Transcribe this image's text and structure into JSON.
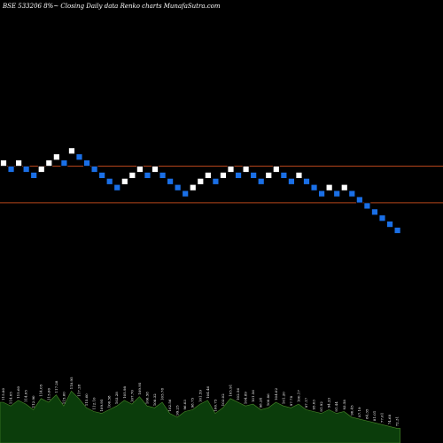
{
  "header": {
    "title": "BSE 533206  8%~   Closing Daily data  Renko  charts MunafaSutra.com"
  },
  "colors": {
    "background": "#000000",
    "up_brick": "#ffffff",
    "down_brick": "#1a6fe6",
    "brick_border": "#000000",
    "reference_line": "#b5451b",
    "volume_fill": "#0b3d0b",
    "volume_edge": "#4a8a2a"
  },
  "chart_data": {
    "type": "renko",
    "reference_lines": [
      0.0,
      -6.0
    ],
    "brick_levels": [
      1,
      0,
      1,
      0,
      -1,
      0,
      1,
      2,
      1,
      3,
      2,
      1,
      0,
      -1,
      -2,
      -3,
      -2,
      -1,
      0,
      -1,
      0,
      -1,
      -2,
      -3,
      -4,
      -3,
      -2,
      -1,
      -2,
      -1,
      0,
      -1,
      0,
      -1,
      -2,
      -1,
      0,
      -1,
      -2,
      -1,
      -2,
      -3,
      -4,
      -3,
      -4,
      -3,
      -4,
      -5,
      -6,
      -7,
      -8,
      -9,
      -10
    ],
    "brick_directions": [
      "up",
      "down",
      "up",
      "down",
      "down",
      "up",
      "up",
      "up",
      "down",
      "up",
      "down",
      "down",
      "down",
      "down",
      "down",
      "down",
      "up",
      "up",
      "up",
      "down",
      "up",
      "down",
      "down",
      "down",
      "down",
      "up",
      "up",
      "up",
      "down",
      "up",
      "up",
      "down",
      "up",
      "down",
      "down",
      "up",
      "up",
      "down",
      "down",
      "up",
      "down",
      "down",
      "down",
      "up",
      "down",
      "up",
      "down",
      "down",
      "down",
      "down",
      "down",
      "down",
      "down"
    ],
    "brick_labels": [
      "115.80",
      "114.05",
      "115.60",
      "114.05",
      "112.90",
      "114.05",
      "115.60",
      "117.28",
      "115.60",
      "118.95",
      "117.28",
      "115.60",
      "112.10",
      "109.95",
      "106.58",
      "103.28",
      "105.98",
      "107.70",
      "109.95",
      "106.58",
      "108.32",
      "105.78",
      "102.56",
      "99.25",
      "96.03",
      "98.75",
      "101.59",
      "104.46",
      "100.75",
      "103.02",
      "105.91",
      "102.56",
      "104.89",
      "101.56",
      "98.24",
      "100.86",
      "104.02",
      "101.20",
      "97.78",
      "100.17",
      "97.17",
      "95.03",
      "91.92",
      "94.23",
      "91.44",
      "93.58",
      "90.45",
      "87.19",
      "84.35",
      "81.01",
      "77.61",
      "74.68",
      "72.31"
    ],
    "volume": [
      1.0,
      0.9,
      1.05,
      0.95,
      0.8,
      1.1,
      1.0,
      1.2,
      0.9,
      1.3,
      1.1,
      0.85,
      0.75,
      0.7,
      0.8,
      0.9,
      1.05,
      0.95,
      1.15,
      0.9,
      0.85,
      1.0,
      0.7,
      0.6,
      0.75,
      0.8,
      0.95,
      1.05,
      0.7,
      0.85,
      1.1,
      1.0,
      0.9,
      0.95,
      0.8,
      0.85,
      1.0,
      0.9,
      0.85,
      0.95,
      0.8,
      0.75,
      0.7,
      0.8,
      0.7,
      0.75,
      0.6,
      0.55,
      0.5,
      0.45,
      0.4,
      0.35,
      0.3
    ]
  }
}
